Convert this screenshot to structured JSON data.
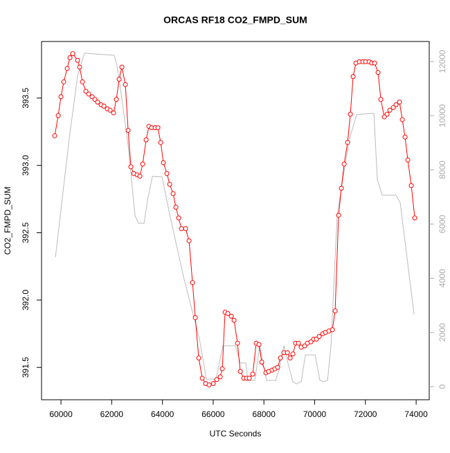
{
  "chart_data": {
    "type": "line",
    "title": "ORCAS RF18 CO2_FMPD_SUM",
    "x_label": "UTC Seconds",
    "y_label": "CO2_FMPD_SUM",
    "xlim": [
      59234,
      74516
    ],
    "xticks": [
      60000,
      62000,
      64000,
      66000,
      68000,
      70000,
      72000,
      74000
    ],
    "ylim": [
      391.26,
      393.92
    ],
    "yticks": [
      391.5,
      {
        "value": 392,
        "label": "392.0"
      },
      392.5,
      {
        "value": 393,
        "label": "393.0"
      },
      393.5
    ],
    "y2lim": [
      -485,
      12740
    ],
    "y2ticks": [
      0,
      2000,
      4000,
      6000,
      8000,
      10000,
      12000
    ],
    "series": [
      {
        "color": "#ff0000",
        "markers": true,
        "axis": "y",
        "x": [
          59754,
          59891,
          60000,
          60109,
          60246,
          60355,
          60464,
          60655,
          60737,
          60846,
          60982,
          61092,
          61228,
          61337,
          61446,
          61583,
          61692,
          61828,
          61938,
          62074,
          62183,
          62292,
          62402,
          62538,
          62647,
          62756,
          62866,
          63002,
          63111,
          63220,
          63357,
          63466,
          63575,
          63711,
          63821,
          63930,
          64039,
          64175,
          64285,
          64421,
          64530,
          64639,
          64749,
          64912,
          65049,
          65185,
          65294,
          65431,
          65567,
          65704,
          65840,
          66004,
          66140,
          66277,
          66359,
          66468,
          66577,
          66713,
          66823,
          66959,
          67068,
          67205,
          67314,
          67423,
          67560,
          67696,
          67805,
          67914,
          68078,
          68187,
          68324,
          68433,
          68542,
          68651,
          68788,
          68924,
          69033,
          69142,
          69252,
          69361,
          69470,
          69606,
          69715,
          69852,
          69961,
          70070,
          70179,
          70316,
          70425,
          70561,
          70698,
          70807,
          70943,
          71052,
          71162,
          71298,
          71407,
          71516,
          71626,
          71762,
          71898,
          72008,
          72144,
          72253,
          72362,
          72499,
          72608,
          72744,
          72854,
          72963,
          73099,
          73208,
          73345,
          73454,
          73563,
          73672,
          73809,
          73945
        ],
        "values": [
          393.22,
          393.37,
          393.51,
          393.62,
          393.72,
          393.8,
          393.83,
          393.78,
          393.73,
          393.62,
          393.55,
          393.53,
          393.51,
          393.49,
          393.47,
          393.45,
          393.44,
          393.42,
          393.41,
          393.39,
          393.49,
          393.64,
          393.73,
          393.6,
          393.26,
          392.99,
          392.94,
          392.93,
          392.92,
          393.01,
          393.19,
          393.29,
          393.28,
          393.28,
          393.28,
          393.17,
          393.02,
          392.94,
          392.86,
          392.79,
          392.69,
          392.61,
          392.53,
          392.53,
          392.44,
          392.13,
          391.87,
          391.57,
          391.42,
          391.38,
          391.37,
          391.38,
          391.41,
          391.43,
          391.49,
          391.91,
          391.9,
          391.88,
          391.85,
          391.68,
          391.47,
          391.42,
          391.42,
          391.42,
          391.45,
          391.68,
          391.67,
          391.54,
          391.46,
          391.47,
          391.48,
          391.49,
          391.5,
          391.57,
          391.61,
          391.61,
          391.57,
          391.6,
          391.68,
          391.68,
          391.65,
          391.66,
          391.68,
          391.69,
          391.71,
          391.71,
          391.73,
          391.75,
          391.76,
          391.77,
          391.78,
          391.92,
          392.63,
          392.83,
          393.01,
          393.17,
          393.38,
          393.66,
          393.76,
          393.77,
          393.77,
          393.77,
          393.77,
          393.76,
          393.76,
          393.69,
          393.49,
          393.36,
          393.38,
          393.41,
          393.43,
          393.45,
          393.47,
          393.34,
          393.21,
          393.04,
          392.85,
          392.61
        ]
      },
      {
        "color": "#bbbbbb",
        "markers": false,
        "axis": "y2",
        "x": [
          59782,
          60327,
          60655,
          60928,
          62101,
          62238,
          62647,
          62920,
          63057,
          63275,
          63411,
          63602,
          63984,
          64285,
          64830,
          65458,
          65731,
          66113,
          66386,
          66877,
          67068,
          67287,
          67369,
          67642,
          67833,
          68105,
          68460,
          68597,
          68788,
          68979,
          69142,
          69279,
          69470,
          69634,
          70016,
          70207,
          70343,
          70507,
          70643,
          70889,
          71107,
          71380,
          71653,
          72335,
          72471,
          72662,
          73208,
          73372,
          73699,
          73918
        ],
        "values": [
          4780,
          9170,
          11470,
          12310,
          12230,
          11720,
          8910,
          6310,
          6030,
          6030,
          6870,
          7760,
          7740,
          6360,
          4060,
          1760,
          280,
          280,
          1510,
          1510,
          870,
          870,
          230,
          230,
          1510,
          230,
          230,
          610,
          1510,
          740,
          180,
          100,
          180,
          1170,
          1170,
          230,
          180,
          230,
          1510,
          6360,
          7640,
          9170,
          10040,
          10090,
          7640,
          7070,
          7070,
          6790,
          4320,
          2660
        ]
      }
    ]
  }
}
